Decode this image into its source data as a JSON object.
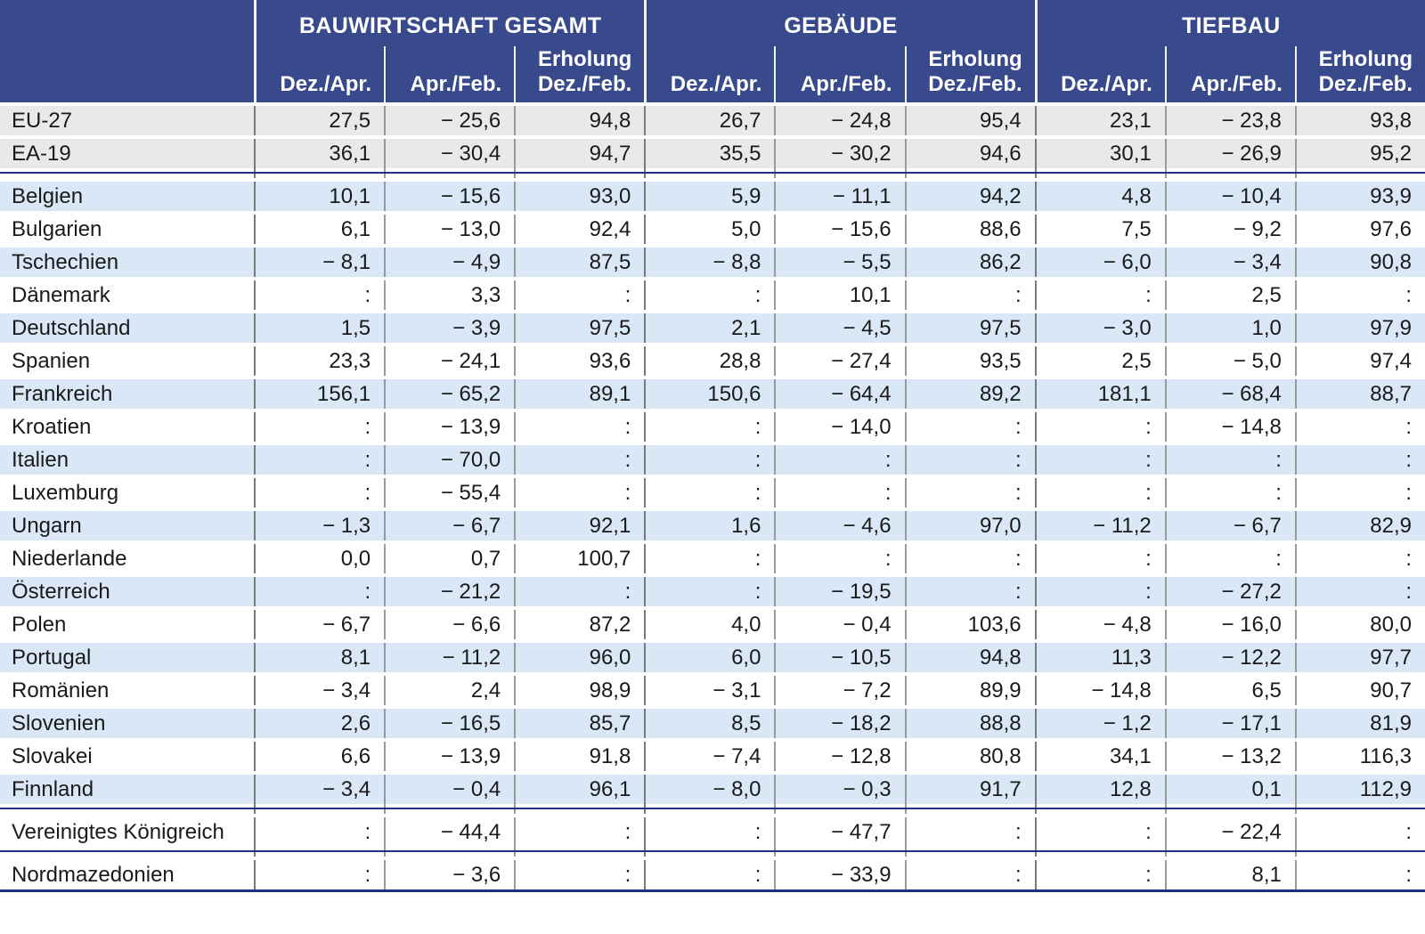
{
  "chart_data": {
    "type": "table",
    "missing_value_symbol": ":",
    "header": {
      "groups": [
        {
          "title": "BAUWIRTSCHAFT GESAMT",
          "erholung_label": "Erholung",
          "cols": [
            "Dez./Apr.",
            "Apr./Feb.",
            "Dez./Feb."
          ]
        },
        {
          "title": "GEBÄUDE",
          "erholung_label": "Erholung",
          "cols": [
            "Dez./Apr.",
            "Apr./Feb.",
            "Dez./Feb."
          ]
        },
        {
          "title": "TIEFBAU",
          "erholung_label": "Erholung",
          "cols": [
            "Dez./Apr.",
            "Apr./Feb.",
            "Dez./Feb."
          ]
        }
      ]
    },
    "rows": [
      {
        "label": "EU-27",
        "bg": "gray",
        "values": [
          "27,5",
          "− 25,6",
          "94,8",
          "26,7",
          "− 24,8",
          "95,4",
          "23,1",
          "− 23,8",
          "93,8"
        ]
      },
      {
        "label": "EA-19",
        "bg": "gray",
        "divider_after": true,
        "values": [
          "36,1",
          "− 30,4",
          "94,7",
          "35,5",
          "− 30,2",
          "94,6",
          "30,1",
          "− 26,9",
          "95,2"
        ]
      },
      {
        "label": "Belgien",
        "bg": "blue",
        "values": [
          "10,1",
          "− 15,6",
          "93,0",
          "5,9",
          "− 11,1",
          "94,2",
          "4,8",
          "− 10,4",
          "93,9"
        ]
      },
      {
        "label": "Bulgarien",
        "bg": "white",
        "values": [
          "6,1",
          "− 13,0",
          "92,4",
          "5,0",
          "− 15,6",
          "88,6",
          "7,5",
          "− 9,2",
          "97,6"
        ]
      },
      {
        "label": "Tschechien",
        "bg": "blue",
        "values": [
          "− 8,1",
          "− 4,9",
          "87,5",
          "− 8,8",
          "− 5,5",
          "86,2",
          "− 6,0",
          "− 3,4",
          "90,8"
        ]
      },
      {
        "label": "Dänemark",
        "bg": "white",
        "values": [
          ":",
          "3,3",
          ":",
          ":",
          "10,1",
          ":",
          ":",
          "2,5",
          ":"
        ]
      },
      {
        "label": "Deutschland",
        "bg": "blue",
        "values": [
          "1,5",
          "− 3,9",
          "97,5",
          "2,1",
          "− 4,5",
          "97,5",
          "− 3,0",
          "1,0",
          "97,9"
        ]
      },
      {
        "label": "Spanien",
        "bg": "white",
        "values": [
          "23,3",
          "− 24,1",
          "93,6",
          "28,8",
          "− 27,4",
          "93,5",
          "2,5",
          "− 5,0",
          "97,4"
        ]
      },
      {
        "label": "Frankreich",
        "bg": "blue",
        "values": [
          "156,1",
          "− 65,2",
          "89,1",
          "150,6",
          "− 64,4",
          "89,2",
          "181,1",
          "− 68,4",
          "88,7"
        ]
      },
      {
        "label": "Kroatien",
        "bg": "white",
        "values": [
          ":",
          "− 13,9",
          ":",
          ":",
          "− 14,0",
          ":",
          ":",
          "− 14,8",
          ":"
        ]
      },
      {
        "label": "Italien",
        "bg": "blue",
        "values": [
          ":",
          "− 70,0",
          ":",
          ":",
          ":",
          ":",
          ":",
          ":",
          ":"
        ]
      },
      {
        "label": "Luxemburg",
        "bg": "white",
        "values": [
          ":",
          "− 55,4",
          ":",
          ":",
          ":",
          ":",
          ":",
          ":",
          ":"
        ]
      },
      {
        "label": "Ungarn",
        "bg": "blue",
        "values": [
          "− 1,3",
          "− 6,7",
          "92,1",
          "1,6",
          "− 4,6",
          "97,0",
          "− 11,2",
          "− 6,7",
          "82,9"
        ]
      },
      {
        "label": "Niederlande",
        "bg": "white",
        "values": [
          "0,0",
          "0,7",
          "100,7",
          ":",
          ":",
          ":",
          ":",
          ":",
          ":"
        ]
      },
      {
        "label": "Österreich",
        "bg": "blue",
        "values": [
          ":",
          "− 21,2",
          ":",
          ":",
          "− 19,5",
          ":",
          ":",
          "− 27,2",
          ":"
        ]
      },
      {
        "label": "Polen",
        "bg": "white",
        "values": [
          "− 6,7",
          "− 6,6",
          "87,2",
          "4,0",
          "− 0,4",
          "103,6",
          "− 4,8",
          "− 16,0",
          "80,0"
        ]
      },
      {
        "label": "Portugal",
        "bg": "blue",
        "values": [
          "8,1",
          "− 11,2",
          "96,0",
          "6,0",
          "− 10,5",
          "94,8",
          "11,3",
          "− 12,2",
          "97,7"
        ]
      },
      {
        "label": "Romänien",
        "bg": "white",
        "values": [
          "− 3,4",
          "2,4",
          "98,9",
          "− 3,1",
          "− 7,2",
          "89,9",
          "− 14,8",
          "6,5",
          "90,7"
        ]
      },
      {
        "label": "Slovenien",
        "bg": "blue",
        "values": [
          "2,6",
          "− 16,5",
          "85,7",
          "8,5",
          "− 18,2",
          "88,8",
          "− 1,2",
          "− 17,1",
          "81,9"
        ]
      },
      {
        "label": "Slovakei",
        "bg": "white",
        "values": [
          "6,6",
          "− 13,9",
          "91,8",
          "− 7,4",
          "− 12,8",
          "80,8",
          "34,1",
          "− 13,2",
          "116,3"
        ]
      },
      {
        "label": "Finnland",
        "bg": "blue",
        "divider_after": true,
        "values": [
          "− 3,4",
          "− 0,4",
          "96,1",
          "− 8,0",
          "− 0,3",
          "91,7",
          "12,8",
          "0,1",
          "112,9"
        ]
      },
      {
        "label": "Vereinigtes Königreich",
        "bg": "white",
        "divider_after": true,
        "values": [
          ":",
          "− 44,4",
          ":",
          ":",
          "− 47,7",
          ":",
          ":",
          "− 22,4",
          ":"
        ]
      },
      {
        "label": "Nordmazedonien",
        "bg": "white",
        "values": [
          ":",
          "− 3,6",
          ":",
          ":",
          "− 33,9",
          ":",
          ":",
          "8,1",
          ":"
        ]
      }
    ]
  },
  "colors": {
    "header_bg": "#394a8c",
    "divider_line": "#1e3282",
    "aggregate_row_bg": "#e9e9e9",
    "striped_row_bg": "#d9e7f7",
    "grid_line": "#9a9a9a",
    "header_text": "#ffffff",
    "body_text": "#1a1a1a"
  }
}
